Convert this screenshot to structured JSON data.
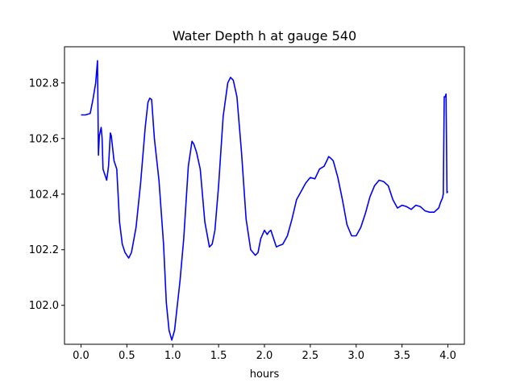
{
  "chart_data": {
    "type": "line",
    "title": "Water Depth h at gauge 540",
    "xlabel": "hours",
    "ylabel": "",
    "xlim": [
      -0.18,
      4.18
    ],
    "ylim": [
      101.86,
      102.93
    ],
    "xticks": [
      0.0,
      0.5,
      1.0,
      1.5,
      2.0,
      2.5,
      3.0,
      3.5,
      4.0
    ],
    "xtick_labels": [
      "0.0",
      "0.5",
      "1.0",
      "1.5",
      "2.0",
      "2.5",
      "3.0",
      "3.5",
      "4.0"
    ],
    "yticks": [
      102.0,
      102.2,
      102.4,
      102.6,
      102.8
    ],
    "ytick_labels": [
      "102.0",
      "102.2",
      "102.4",
      "102.6",
      "102.8"
    ],
    "grid": false,
    "series": [
      {
        "color": "#0000ff",
        "x": [
          0.0,
          0.05,
          0.1,
          0.13,
          0.16,
          0.18,
          0.19,
          0.2,
          0.22,
          0.23,
          0.24,
          0.26,
          0.28,
          0.3,
          0.32,
          0.33,
          0.36,
          0.39,
          0.42,
          0.45,
          0.48,
          0.52,
          0.55,
          0.6,
          0.65,
          0.7,
          0.73,
          0.75,
          0.77,
          0.8,
          0.85,
          0.9,
          0.93,
          0.96,
          0.99,
          1.02,
          1.05,
          1.08,
          1.12,
          1.17,
          1.21,
          1.23,
          1.26,
          1.3,
          1.35,
          1.4,
          1.43,
          1.46,
          1.5,
          1.55,
          1.6,
          1.63,
          1.66,
          1.7,
          1.75,
          1.8,
          1.85,
          1.9,
          1.93,
          1.96,
          2.0,
          2.03,
          2.05,
          2.07,
          2.1,
          2.13,
          2.16,
          2.2,
          2.25,
          2.3,
          2.35,
          2.4,
          2.45,
          2.5,
          2.55,
          2.6,
          2.65,
          2.68,
          2.7,
          2.72,
          2.75,
          2.8,
          2.85,
          2.9,
          2.95,
          3.0,
          3.05,
          3.1,
          3.15,
          3.2,
          3.25,
          3.3,
          3.35,
          3.4,
          3.45,
          3.5,
          3.55,
          3.6,
          3.65,
          3.7,
          3.75,
          3.8,
          3.85,
          3.9,
          3.92,
          3.94,
          3.95,
          3.96,
          3.97,
          3.98,
          3.99,
          4.0
        ],
        "y": [
          102.685,
          102.685,
          102.69,
          102.74,
          102.8,
          102.88,
          102.54,
          102.61,
          102.64,
          102.6,
          102.49,
          102.47,
          102.45,
          102.5,
          102.62,
          102.61,
          102.52,
          102.49,
          102.3,
          102.22,
          102.19,
          102.17,
          102.19,
          102.28,
          102.44,
          102.64,
          102.73,
          102.745,
          102.74,
          102.6,
          102.45,
          102.22,
          102.01,
          101.91,
          101.875,
          101.91,
          102.0,
          102.09,
          102.24,
          102.5,
          102.59,
          102.58,
          102.55,
          102.49,
          102.3,
          102.21,
          102.22,
          102.27,
          102.43,
          102.68,
          102.8,
          102.82,
          102.81,
          102.75,
          102.55,
          102.31,
          102.2,
          102.18,
          102.19,
          102.24,
          102.27,
          102.255,
          102.265,
          102.27,
          102.24,
          102.21,
          102.215,
          102.22,
          102.25,
          102.31,
          102.38,
          102.41,
          102.44,
          102.46,
          102.455,
          102.49,
          102.5,
          102.52,
          102.535,
          102.53,
          102.52,
          102.46,
          102.38,
          102.29,
          102.25,
          102.25,
          102.28,
          102.33,
          102.39,
          102.43,
          102.45,
          102.445,
          102.43,
          102.38,
          102.35,
          102.36,
          102.355,
          102.345,
          102.36,
          102.355,
          102.34,
          102.335,
          102.335,
          102.35,
          102.37,
          102.385,
          102.4,
          102.75,
          102.75,
          102.76,
          102.405,
          102.41
        ]
      }
    ]
  }
}
